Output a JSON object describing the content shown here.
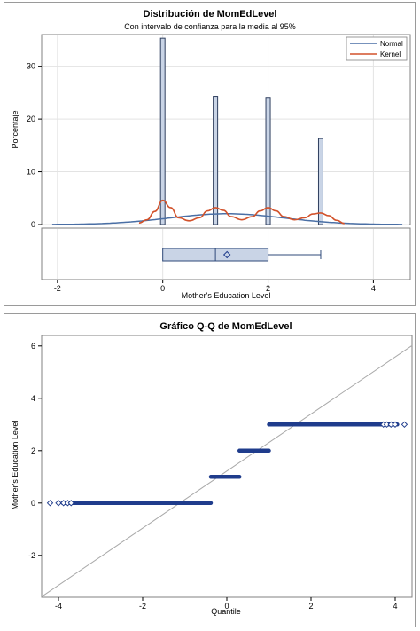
{
  "chart_data": [
    {
      "type": "bar",
      "title": "Distribución de MomEdLevel",
      "subtitle": "Con intervalo de confianza para la media al 95%",
      "xlabel": "Mother's Education Level",
      "ylabel": "Porcentaje",
      "xlim": [
        -2.3,
        4.7
      ],
      "ylim": [
        0,
        36
      ],
      "xticks": [
        "-2",
        "0",
        "2",
        "4"
      ],
      "yticks": [
        "0",
        "10",
        "20",
        "30"
      ],
      "grid": true,
      "legend": "top-right",
      "bars": [
        {
          "x": 0,
          "value": 35.3
        },
        {
          "x": 1,
          "value": 24.3
        },
        {
          "x": 2,
          "value": 24.1
        },
        {
          "x": 3,
          "value": 16.3
        }
      ],
      "series": [
        {
          "name": "Normal",
          "color": "#4a6fa5",
          "mean": 1.22,
          "sd": 1.09
        },
        {
          "name": "Kernel",
          "color": "#d2522b"
        }
      ],
      "kernel_curve": [
        [
          -0.45,
          0.3
        ],
        [
          -0.3,
          0.9
        ],
        [
          -0.15,
          2.5
        ],
        [
          0,
          4.6
        ],
        [
          0.15,
          3.2
        ],
        [
          0.3,
          1.3
        ],
        [
          0.5,
          0.7
        ],
        [
          0.7,
          1.3
        ],
        [
          0.85,
          2.6
        ],
        [
          1,
          3.2
        ],
        [
          1.15,
          2.7
        ],
        [
          1.3,
          1.5
        ],
        [
          1.5,
          0.9
        ],
        [
          1.7,
          1.5
        ],
        [
          1.85,
          2.6
        ],
        [
          2,
          3.2
        ],
        [
          2.15,
          2.6
        ],
        [
          2.3,
          1.5
        ],
        [
          2.5,
          0.9
        ],
        [
          2.7,
          1.3
        ],
        [
          2.85,
          2.0
        ],
        [
          3,
          2.2
        ],
        [
          3.15,
          1.7
        ],
        [
          3.3,
          0.8
        ],
        [
          3.45,
          0.2
        ]
      ],
      "boxplot": {
        "min": 0,
        "q1": 0,
        "median": 1,
        "mean": 1.22,
        "q3": 2,
        "max": 3,
        "color": "#c9d4e6",
        "edge": "#2f4a7a"
      }
    },
    {
      "type": "scatter",
      "title": "Gráfico Q-Q de MomEdLevel",
      "xlabel": "Quantile",
      "ylabel": "Mother's Education Level",
      "xlim": [
        -4.4,
        4.4
      ],
      "ylim": [
        -3.6,
        6.4
      ],
      "xticks": [
        "-4",
        "-2",
        "0",
        "2",
        "4"
      ],
      "yticks": [
        "-2",
        "0",
        "2",
        "4",
        "6"
      ],
      "grid": false,
      "reference_line": {
        "intercept": 1.22,
        "slope": 1.09,
        "color": "#a9a9a9"
      },
      "marker_color": "#1f3c8c",
      "segments": [
        {
          "y": 0,
          "x_from": -3.9,
          "x_to": -0.38
        },
        {
          "y": 1,
          "x_from": -0.38,
          "x_to": 0.3
        },
        {
          "y": 2,
          "x_from": 0.3,
          "x_to": 1.0
        },
        {
          "y": 3,
          "x_from": 1.0,
          "x_to": 4.05
        }
      ],
      "outlier_points": [
        {
          "x": -4.2,
          "y": 0
        },
        {
          "x": -4.0,
          "y": 0
        },
        {
          "x": -3.88,
          "y": 0
        },
        {
          "x": -3.78,
          "y": 0
        },
        {
          "x": -3.7,
          "y": 0
        },
        {
          "x": 3.72,
          "y": 3
        },
        {
          "x": 3.8,
          "y": 3
        },
        {
          "x": 3.9,
          "y": 3
        },
        {
          "x": 4.0,
          "y": 3
        },
        {
          "x": 4.22,
          "y": 3
        }
      ]
    }
  ]
}
